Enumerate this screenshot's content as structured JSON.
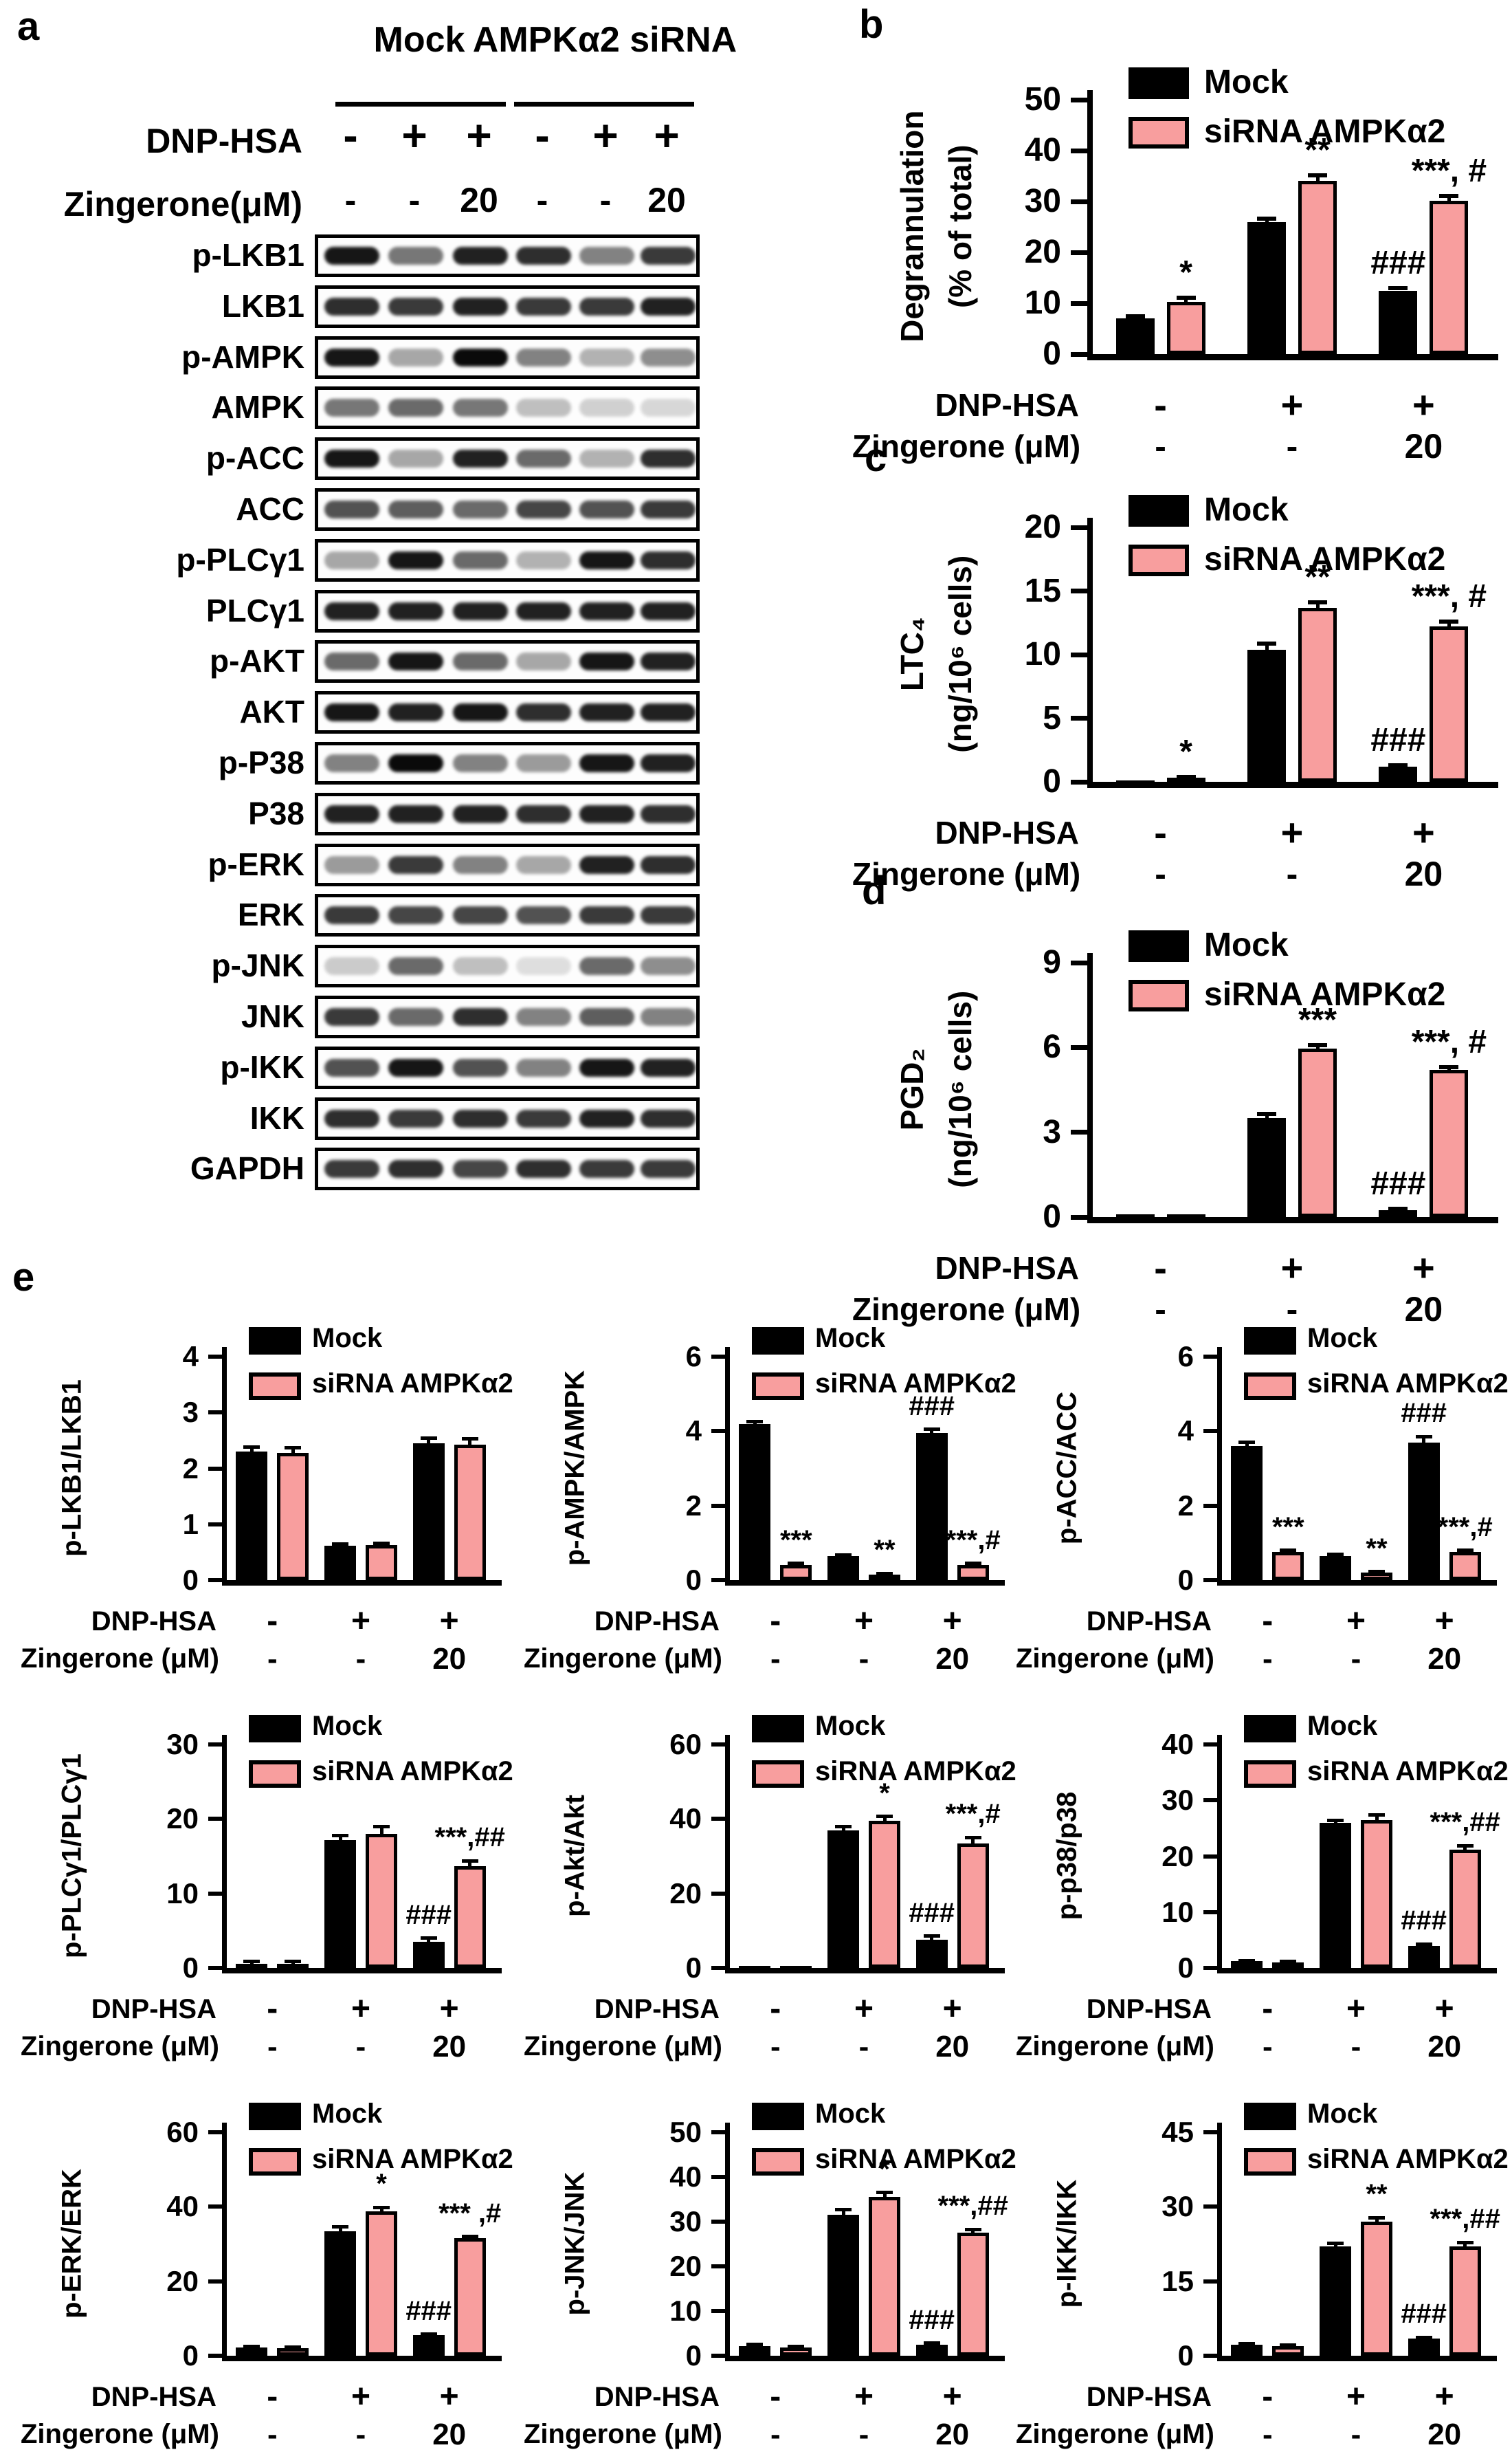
{
  "figure": {
    "panel_letters": {
      "a": "a",
      "b": "b",
      "c": "c",
      "d": "d",
      "e": "e"
    }
  },
  "colors": {
    "mock_bar": "#000000",
    "sirna_bar": "#F89E9E",
    "axis": "#000000",
    "background": "#ffffff"
  },
  "legend": {
    "mock": "Mock",
    "sirna": "siRNA AMPKα2"
  },
  "conditions": {
    "dnp_label": "DNP-HSA",
    "zingerone_label": "Zingerone (μM)",
    "dnp_values": [
      "-",
      "+",
      "+"
    ],
    "zingerone_values": [
      "-",
      "-",
      "20"
    ]
  },
  "western_blot": {
    "group_labels": [
      "Mock",
      "AMPKα2 siRNA"
    ],
    "dnp_label": "DNP-HSA",
    "zingerone_label": "Zingerone(μM)",
    "dnp_values": [
      "-",
      "+",
      "+",
      "-",
      "+",
      "+"
    ],
    "zingerone_values": [
      "-",
      "-",
      "20",
      "-",
      "-",
      "20"
    ],
    "rows": [
      {
        "label": "p-LKB1",
        "bands": [
          0.95,
          0.55,
          0.9,
          0.85,
          0.5,
          0.8
        ]
      },
      {
        "label": "LKB1",
        "bands": [
          0.85,
          0.8,
          0.9,
          0.8,
          0.8,
          0.9
        ]
      },
      {
        "label": "p-AMPK",
        "bands": [
          0.95,
          0.35,
          1.0,
          0.5,
          0.3,
          0.45
        ]
      },
      {
        "label": "AMPK",
        "bands": [
          0.55,
          0.6,
          0.55,
          0.25,
          0.18,
          0.15
        ]
      },
      {
        "label": "p-ACC",
        "bands": [
          0.95,
          0.35,
          0.9,
          0.6,
          0.3,
          0.85
        ]
      },
      {
        "label": "ACC",
        "bands": [
          0.7,
          0.65,
          0.6,
          0.75,
          0.7,
          0.8
        ]
      },
      {
        "label": "p-PLCγ1",
        "bands": [
          0.35,
          0.95,
          0.6,
          0.3,
          0.95,
          0.85
        ]
      },
      {
        "label": "PLCγ1",
        "bands": [
          0.9,
          0.9,
          0.9,
          0.9,
          0.9,
          0.9
        ]
      },
      {
        "label": "p-AKT",
        "bands": [
          0.6,
          0.95,
          0.6,
          0.35,
          0.95,
          0.9
        ]
      },
      {
        "label": "AKT",
        "bands": [
          0.95,
          0.9,
          0.95,
          0.85,
          0.9,
          0.9
        ]
      },
      {
        "label": "p-P38",
        "bands": [
          0.5,
          1.0,
          0.5,
          0.4,
          0.95,
          0.9
        ]
      },
      {
        "label": "P38",
        "bands": [
          0.9,
          0.9,
          0.9,
          0.85,
          0.9,
          0.85
        ]
      },
      {
        "label": "p-ERK",
        "bands": [
          0.4,
          0.8,
          0.5,
          0.35,
          0.9,
          0.85
        ]
      },
      {
        "label": "ERK",
        "bands": [
          0.8,
          0.75,
          0.75,
          0.7,
          0.8,
          0.8
        ]
      },
      {
        "label": "p-JNK",
        "bands": [
          0.2,
          0.6,
          0.25,
          0.12,
          0.6,
          0.45
        ]
      },
      {
        "label": "JNK",
        "bands": [
          0.8,
          0.6,
          0.85,
          0.5,
          0.65,
          0.5
        ]
      },
      {
        "label": "p-IKK",
        "bands": [
          0.7,
          0.95,
          0.7,
          0.5,
          0.95,
          0.9
        ]
      },
      {
        "label": "IKK",
        "bands": [
          0.85,
          0.8,
          0.85,
          0.8,
          0.9,
          0.85
        ]
      },
      {
        "label": "GAPDH",
        "bands": [
          0.8,
          0.85,
          0.75,
          0.85,
          0.8,
          0.8
        ]
      }
    ]
  },
  "chart_data": [
    {
      "id": "b",
      "panel": "b",
      "kind": "large",
      "type": "bar",
      "ylabel": [
        "Degrannulation",
        "(% of total)"
      ],
      "ymax": 50,
      "yticks": [
        0,
        10,
        20,
        30,
        40,
        50
      ],
      "series_names": [
        "Mock",
        "siRNA AMPKα2"
      ],
      "groups": [
        {
          "mock": 7.0,
          "mock_err": 0.4,
          "mock_sig": "",
          "sirna": 10.3,
          "sirna_err": 0.8,
          "sirna_sig": "*"
        },
        {
          "mock": 26.0,
          "mock_err": 0.6,
          "mock_sig": "",
          "sirna": 34.0,
          "sirna_err": 1.2,
          "sirna_sig": "**"
        },
        {
          "mock": 12.5,
          "mock_err": 0.5,
          "mock_sig": "###",
          "sirna": 30.2,
          "sirna_err": 0.9,
          "sirna_sig": "***, #"
        }
      ]
    },
    {
      "id": "c",
      "panel": "c",
      "kind": "large",
      "type": "bar",
      "ylabel": [
        "LTC₄",
        "(ng/10⁶ cells)"
      ],
      "ymax": 20,
      "yticks": [
        0,
        5,
        10,
        15,
        20
      ],
      "series_names": [
        "Mock",
        "siRNA AMPKα2"
      ],
      "groups": [
        {
          "mock": 0.12,
          "mock_err": 0.0,
          "mock_sig": "",
          "sirna": 0.3,
          "sirna_err": 0.08,
          "sirna_sig": "*"
        },
        {
          "mock": 10.4,
          "mock_err": 0.45,
          "mock_sig": "",
          "sirna": 13.7,
          "sirna_err": 0.4,
          "sirna_sig": "**"
        },
        {
          "mock": 1.2,
          "mock_err": 0.1,
          "mock_sig": "###",
          "sirna": 12.2,
          "sirna_err": 0.4,
          "sirna_sig": "***, #"
        }
      ]
    },
    {
      "id": "d",
      "panel": "d",
      "kind": "large",
      "type": "bar",
      "ylabel": [
        "PGD₂",
        "(ng/10⁶ cells)"
      ],
      "ymax": 9,
      "yticks": [
        0,
        3,
        6,
        9
      ],
      "series_names": [
        "Mock",
        "siRNA AMPKα2"
      ],
      "groups": [
        {
          "mock": 0.1,
          "mock_err": 0.0,
          "mock_sig": "",
          "sirna": 0.1,
          "sirna_err": 0.0,
          "sirna_sig": ""
        },
        {
          "mock": 3.5,
          "mock_err": 0.15,
          "mock_sig": "",
          "sirna": 5.95,
          "sirna_err": 0.12,
          "sirna_sig": "***"
        },
        {
          "mock": 0.25,
          "mock_err": 0.05,
          "mock_sig": "###",
          "sirna": 5.2,
          "sirna_err": 0.1,
          "sirna_sig": "***, #"
        }
      ]
    },
    {
      "id": "e1",
      "panel": "e",
      "kind": "small",
      "type": "bar",
      "ylabel": [
        "p-LKB1/LKB1"
      ],
      "ymax": 4,
      "yticks": [
        0,
        1,
        2,
        3,
        4
      ],
      "series_names": [
        "Mock",
        "siRNA AMPKα2"
      ],
      "groups": [
        {
          "mock": 2.3,
          "mock_err": 0.08,
          "mock_sig": "",
          "sirna": 2.28,
          "sirna_err": 0.09,
          "sirna_sig": ""
        },
        {
          "mock": 0.62,
          "mock_err": 0.03,
          "mock_sig": "",
          "sirna": 0.63,
          "sirna_err": 0.03,
          "sirna_sig": ""
        },
        {
          "mock": 2.45,
          "mock_err": 0.09,
          "mock_sig": "",
          "sirna": 2.43,
          "sirna_err": 0.1,
          "sirna_sig": ""
        }
      ]
    },
    {
      "id": "e2",
      "panel": "e",
      "kind": "small",
      "type": "bar",
      "ylabel": [
        "p-AMPK/AMPK"
      ],
      "ymax": 6,
      "yticks": [
        0,
        2,
        4,
        6
      ],
      "series_names": [
        "Mock",
        "siRNA AMPKα2"
      ],
      "groups": [
        {
          "mock": 4.2,
          "mock_err": 0.06,
          "mock_sig": "",
          "sirna": 0.4,
          "sirna_err": 0.05,
          "sirna_sig": "***"
        },
        {
          "mock": 0.65,
          "mock_err": 0.03,
          "mock_sig": "",
          "sirna": 0.15,
          "sirna_err": 0.03,
          "sirna_sig": "**"
        },
        {
          "mock": 3.95,
          "mock_err": 0.1,
          "mock_sig": "###",
          "sirna": 0.4,
          "sirna_err": 0.05,
          "sirna_sig": "***,#"
        }
      ]
    },
    {
      "id": "e3",
      "panel": "e",
      "kind": "small",
      "type": "bar",
      "ylabel": [
        "p-ACC/ACC"
      ],
      "ymax": 6,
      "yticks": [
        0,
        2,
        4,
        6
      ],
      "series_names": [
        "Mock",
        "siRNA AMPKα2"
      ],
      "groups": [
        {
          "mock": 3.6,
          "mock_err": 0.1,
          "mock_sig": "",
          "sirna": 0.75,
          "sirna_err": 0.05,
          "sirna_sig": "***"
        },
        {
          "mock": 0.65,
          "mock_err": 0.04,
          "mock_sig": "",
          "sirna": 0.2,
          "sirna_err": 0.03,
          "sirna_sig": "**"
        },
        {
          "mock": 3.7,
          "mock_err": 0.15,
          "mock_sig": "###",
          "sirna": 0.75,
          "sirna_err": 0.05,
          "sirna_sig": "***,#"
        }
      ]
    },
    {
      "id": "e4",
      "panel": "e",
      "kind": "small",
      "type": "bar",
      "ylabel": [
        "p-PLCγ1/PLCγ1"
      ],
      "ymax": 30,
      "yticks": [
        0,
        10,
        20,
        30
      ],
      "series_names": [
        "Mock",
        "siRNA AMPKα2"
      ],
      "groups": [
        {
          "mock": 0.6,
          "mock_err": 0.3,
          "mock_sig": "",
          "sirna": 0.6,
          "sirna_err": 0.3,
          "sirna_sig": ""
        },
        {
          "mock": 17.2,
          "mock_err": 0.6,
          "mock_sig": "",
          "sirna": 18.0,
          "sirna_err": 1.0,
          "sirna_sig": ""
        },
        {
          "mock": 3.5,
          "mock_err": 0.5,
          "mock_sig": "###",
          "sirna": 13.7,
          "sirna_err": 0.7,
          "sirna_sig": "***,##"
        }
      ]
    },
    {
      "id": "e5",
      "panel": "e",
      "kind": "small",
      "type": "bar",
      "ylabel": [
        "p-Akt/Akt"
      ],
      "ymax": 60,
      "yticks": [
        0,
        20,
        40,
        60
      ],
      "series_names": [
        "Mock",
        "siRNA AMPKα2"
      ],
      "groups": [
        {
          "mock": 0.6,
          "mock_err": 0.0,
          "mock_sig": "",
          "sirna": 0.6,
          "sirna_err": 0.0,
          "sirna_sig": ""
        },
        {
          "mock": 37.0,
          "mock_err": 0.9,
          "mock_sig": "",
          "sirna": 39.5,
          "sirna_err": 1.2,
          "sirna_sig": "*"
        },
        {
          "mock": 7.5,
          "mock_err": 1.0,
          "mock_sig": "###",
          "sirna": 33.5,
          "sirna_err": 1.5,
          "sirna_sig": "***,#"
        }
      ]
    },
    {
      "id": "e6",
      "panel": "e",
      "kind": "small",
      "type": "bar",
      "ylabel": [
        "p-p38/p38"
      ],
      "ymax": 40,
      "yticks": [
        0,
        10,
        20,
        30,
        40
      ],
      "series_names": [
        "Mock",
        "siRNA AMPKα2"
      ],
      "groups": [
        {
          "mock": 1.2,
          "mock_err": 0.15,
          "mock_sig": "",
          "sirna": 1.0,
          "sirna_err": 0.15,
          "sirna_sig": ""
        },
        {
          "mock": 26.0,
          "mock_err": 0.4,
          "mock_sig": "",
          "sirna": 26.5,
          "sirna_err": 0.9,
          "sirna_sig": ""
        },
        {
          "mock": 4.0,
          "mock_err": 0.3,
          "mock_sig": "###",
          "sirna": 21.2,
          "sirna_err": 0.7,
          "sirna_sig": "***,##"
        }
      ]
    },
    {
      "id": "e7",
      "panel": "e",
      "kind": "small",
      "type": "bar",
      "ylabel": [
        "p-ERK/ERK"
      ],
      "ymax": 60,
      "yticks": [
        0,
        20,
        40,
        60
      ],
      "series_names": [
        "Mock",
        "siRNA AMPKα2"
      ],
      "groups": [
        {
          "mock": 2.2,
          "mock_err": 0.3,
          "mock_sig": "",
          "sirna": 2.0,
          "sirna_err": 0.3,
          "sirna_sig": ""
        },
        {
          "mock": 33.5,
          "mock_err": 1.2,
          "mock_sig": "",
          "sirna": 38.8,
          "sirna_err": 1.0,
          "sirna_sig": "*"
        },
        {
          "mock": 5.5,
          "mock_err": 0.3,
          "mock_sig": "###",
          "sirna": 31.5,
          "sirna_err": 0.5,
          "sirna_sig": "*** ,#"
        }
      ]
    },
    {
      "id": "e8",
      "panel": "e",
      "kind": "small",
      "type": "bar",
      "ylabel": [
        "p-JNK/JNK"
      ],
      "ymax": 50,
      "yticks": [
        0,
        10,
        20,
        30,
        40,
        50
      ],
      "series_names": [
        "Mock",
        "siRNA AMPKα2"
      ],
      "groups": [
        {
          "mock": 2.2,
          "mock_err": 0.3,
          "mock_sig": "",
          "sirna": 1.8,
          "sirna_err": 0.3,
          "sirna_sig": ""
        },
        {
          "mock": 31.5,
          "mock_err": 1.2,
          "mock_sig": "",
          "sirna": 35.5,
          "sirna_err": 1.0,
          "sirna_sig": "*"
        },
        {
          "mock": 2.5,
          "mock_err": 0.3,
          "mock_sig": "###",
          "sirna": 27.5,
          "sirna_err": 0.8,
          "sirna_sig": "***,##"
        }
      ]
    },
    {
      "id": "e9",
      "panel": "e",
      "kind": "small",
      "type": "bar",
      "ylabel": [
        "p-IKK/IKK"
      ],
      "ymax": 45,
      "yticks": [
        0,
        15,
        30,
        45
      ],
      "series_names": [
        "Mock",
        "siRNA AMPKα2"
      ],
      "groups": [
        {
          "mock": 2.2,
          "mock_err": 0.2,
          "mock_sig": "",
          "sirna": 2.0,
          "sirna_err": 0.2,
          "sirna_sig": ""
        },
        {
          "mock": 22.0,
          "mock_err": 0.7,
          "mock_sig": "",
          "sirna": 27.0,
          "sirna_err": 0.8,
          "sirna_sig": "**"
        },
        {
          "mock": 3.5,
          "mock_err": 0.2,
          "mock_sig": "###",
          "sirna": 22.0,
          "sirna_err": 0.8,
          "sirna_sig": "***,##"
        }
      ]
    }
  ]
}
